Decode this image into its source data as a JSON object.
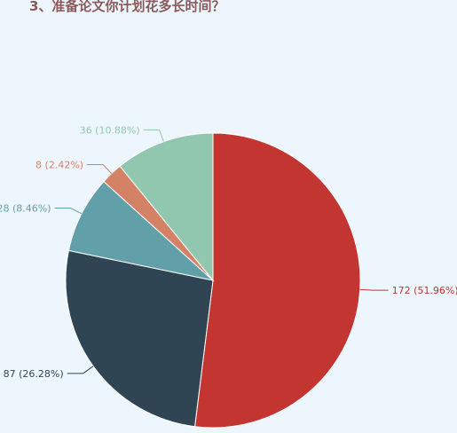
{
  "title": "3、准备论文你计划花多长时间？",
  "chart_data": {
    "type": "pie",
    "title": "3、准备论文你计划花多长时间？",
    "slices": [
      {
        "value": 172,
        "percent": 51.96,
        "label": "172 (51.96%)",
        "color": "#c23531"
      },
      {
        "value": 87,
        "percent": 26.28,
        "label": "87 (26.28%)",
        "color": "#2f4554"
      },
      {
        "value": 28,
        "percent": 8.46,
        "label": "28 (8.46%)",
        "color": "#61a0a8"
      },
      {
        "value": 8,
        "percent": 2.42,
        "label": "8 (2.42%)",
        "color": "#d48265"
      },
      {
        "value": 36,
        "percent": 10.88,
        "label": "36 (10.88%)",
        "color": "#91c7ae"
      }
    ],
    "start": "top",
    "direction": "clockwise"
  }
}
